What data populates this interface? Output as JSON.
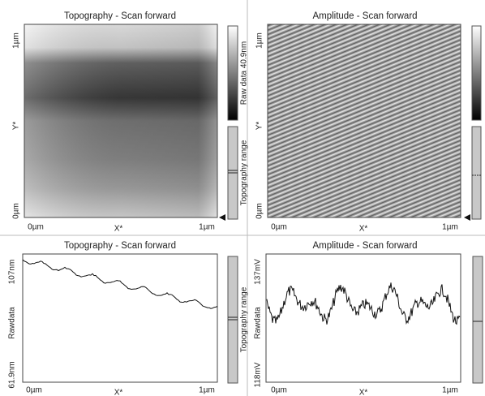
{
  "panels": [
    {
      "title": "Topography - Scan forward",
      "y_labels": [
        "1µm",
        "Y*",
        "0µm"
      ],
      "x_labels": [
        "0µm",
        "X*",
        "1µm"
      ],
      "bar_labels": [
        "Raw data 40.9nm",
        "Topography range"
      ]
    },
    {
      "title": "Amplitude - Scan forward",
      "y_labels": [
        "1µm",
        "Y*",
        "0µm"
      ],
      "x_labels": [
        "0µm",
        "X*",
        "1µm"
      ]
    },
    {
      "title": "Topography - Scan forward",
      "y_labels": [
        "107nm",
        "Rawdata",
        "61.9nm"
      ],
      "x_labels": [
        "0µm",
        "X*",
        "1µm"
      ],
      "bar_labels": [
        "Topography range"
      ]
    },
    {
      "title": "Amplitude - Scan forward",
      "y_labels": [
        "137mV",
        "Rawdata",
        "118mV"
      ],
      "x_labels": [
        "0µm",
        "X*",
        "1µm"
      ]
    }
  ]
}
